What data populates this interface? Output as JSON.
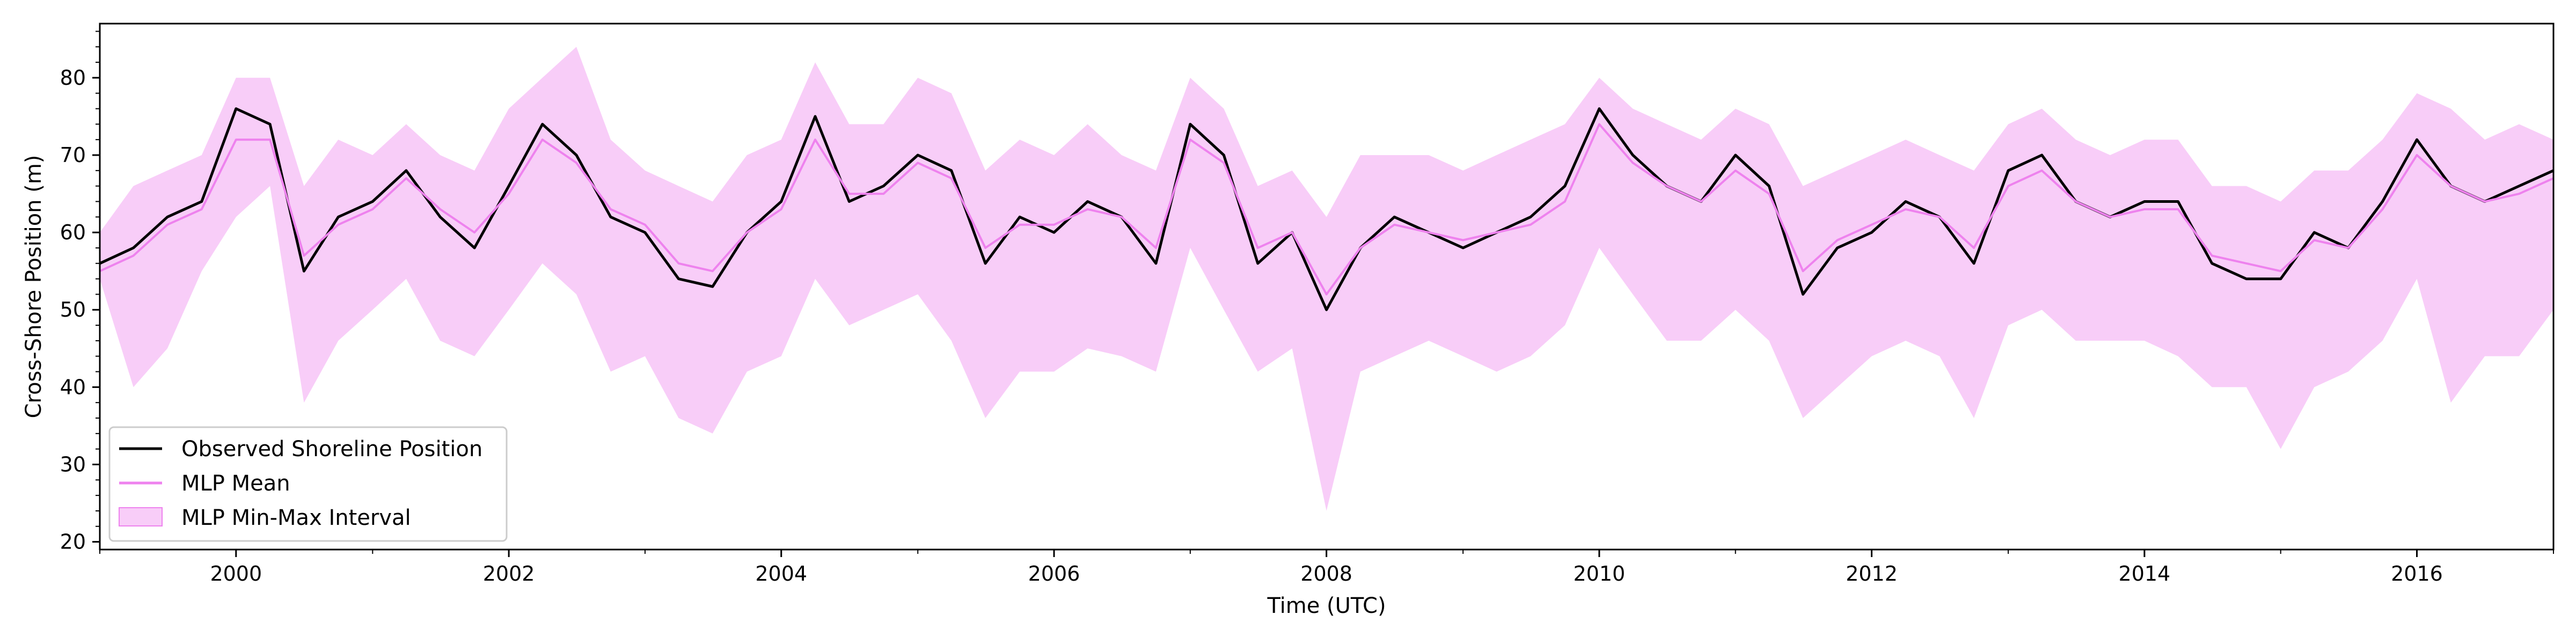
{
  "chart_data": {
    "type": "line",
    "xlabel": "Time (UTC)",
    "ylabel": "Cross-Shore Position (m)",
    "xlim": [
      "1999-01-01",
      "2017-01-01"
    ],
    "ylim": [
      19,
      87
    ],
    "x_ticks": [
      "2000",
      "2002",
      "2004",
      "2006",
      "2008",
      "2010",
      "2012",
      "2014",
      "2016"
    ],
    "y_ticks": [
      20,
      30,
      40,
      50,
      60,
      70,
      80
    ],
    "grid": false,
    "legend_position": "lower-left",
    "colors": {
      "observed": "#000000",
      "mean": "#ee82ee",
      "band_fill": "#ee82ee",
      "band_fill_opacity": 0.4
    },
    "legend": [
      {
        "key": "observed",
        "label": "Observed Shoreline Position"
      },
      {
        "key": "mean",
        "label": "MLP Mean"
      },
      {
        "key": "band",
        "label": "MLP Min-Max Interval"
      }
    ],
    "x": [
      "1999-01-01",
      "1999-04-01",
      "1999-07-01",
      "1999-10-01",
      "2000-01-01",
      "2000-04-01",
      "2000-07-01",
      "2000-10-01",
      "2001-01-01",
      "2001-04-01",
      "2001-07-01",
      "2001-10-01",
      "2002-01-01",
      "2002-04-01",
      "2002-07-01",
      "2002-10-01",
      "2003-01-01",
      "2003-04-01",
      "2003-07-01",
      "2003-10-01",
      "2004-01-01",
      "2004-04-01",
      "2004-07-01",
      "2004-10-01",
      "2005-01-01",
      "2005-04-01",
      "2005-07-01",
      "2005-10-01",
      "2006-01-01",
      "2006-04-01",
      "2006-07-01",
      "2006-10-01",
      "2007-01-01",
      "2007-04-01",
      "2007-07-01",
      "2007-10-01",
      "2008-01-01",
      "2008-04-01",
      "2008-07-01",
      "2008-10-01",
      "2009-01-01",
      "2009-04-01",
      "2009-07-01",
      "2009-10-01",
      "2010-01-01",
      "2010-04-01",
      "2010-07-01",
      "2010-10-01",
      "2011-01-01",
      "2011-04-01",
      "2011-07-01",
      "2011-10-01",
      "2012-01-01",
      "2012-04-01",
      "2012-07-01",
      "2012-10-01",
      "2013-01-01",
      "2013-04-01",
      "2013-07-01",
      "2013-10-01",
      "2014-01-01",
      "2014-04-01",
      "2014-07-01",
      "2014-10-01",
      "2015-01-01",
      "2015-04-01",
      "2015-07-01",
      "2015-10-01",
      "2016-01-01",
      "2016-04-01",
      "2016-07-01",
      "2016-10-01",
      "2017-01-01"
    ],
    "series": [
      {
        "name": "Observed Shoreline Position",
        "key": "observed",
        "values": [
          56,
          58,
          62,
          64,
          76,
          74,
          55,
          62,
          64,
          68,
          62,
          58,
          66,
          74,
          70,
          62,
          60,
          54,
          53,
          60,
          64,
          75,
          64,
          66,
          70,
          68,
          56,
          62,
          60,
          64,
          62,
          56,
          74,
          70,
          56,
          60,
          50,
          58,
          62,
          60,
          58,
          60,
          62,
          66,
          76,
          70,
          66,
          64,
          70,
          66,
          52,
          58,
          60,
          64,
          62,
          56,
          68,
          70,
          64,
          62,
          64,
          64,
          56,
          54,
          54,
          60,
          58,
          64,
          72,
          66,
          64,
          66,
          68
        ]
      },
      {
        "name": "MLP Mean",
        "key": "mean",
        "values": [
          55,
          57,
          61,
          63,
          72,
          72,
          57,
          61,
          63,
          67,
          63,
          60,
          65,
          72,
          69,
          63,
          61,
          56,
          55,
          60,
          63,
          72,
          65,
          65,
          69,
          67,
          58,
          61,
          61,
          63,
          62,
          58,
          72,
          69,
          58,
          60,
          52,
          58,
          61,
          60,
          59,
          60,
          61,
          64,
          74,
          69,
          66,
          64,
          68,
          65,
          55,
          59,
          61,
          63,
          62,
          58,
          66,
          68,
          64,
          62,
          63,
          63,
          57,
          56,
          55,
          59,
          58,
          63,
          70,
          66,
          64,
          65,
          67
        ]
      },
      {
        "name": "MLP Min-Max Interval (min)",
        "key": "band_min",
        "values": [
          54,
          40,
          45,
          55,
          62,
          66,
          38,
          46,
          50,
          54,
          46,
          44,
          50,
          56,
          52,
          42,
          44,
          36,
          34,
          42,
          44,
          54,
          48,
          50,
          52,
          46,
          36,
          42,
          42,
          45,
          44,
          42,
          58,
          50,
          42,
          45,
          24,
          42,
          44,
          46,
          44,
          42,
          44,
          48,
          58,
          52,
          46,
          46,
          50,
          46,
          36,
          40,
          44,
          46,
          44,
          36,
          48,
          50,
          46,
          46,
          46,
          44,
          40,
          40,
          32,
          40,
          42,
          46,
          54,
          38,
          44,
          44,
          50
        ]
      },
      {
        "name": "MLP Min-Max Interval (max)",
        "key": "band_max",
        "values": [
          60,
          66,
          68,
          70,
          80,
          80,
          66,
          72,
          70,
          74,
          70,
          68,
          76,
          80,
          84,
          72,
          68,
          66,
          64,
          70,
          72,
          82,
          74,
          74,
          80,
          78,
          68,
          72,
          70,
          74,
          70,
          68,
          80,
          76,
          66,
          68,
          62,
          70,
          70,
          70,
          68,
          70,
          72,
          74,
          80,
          76,
          74,
          72,
          76,
          74,
          66,
          68,
          70,
          72,
          70,
          68,
          74,
          76,
          72,
          70,
          72,
          72,
          66,
          66,
          64,
          68,
          68,
          72,
          78,
          76,
          72,
          74,
          72
        ]
      }
    ]
  }
}
